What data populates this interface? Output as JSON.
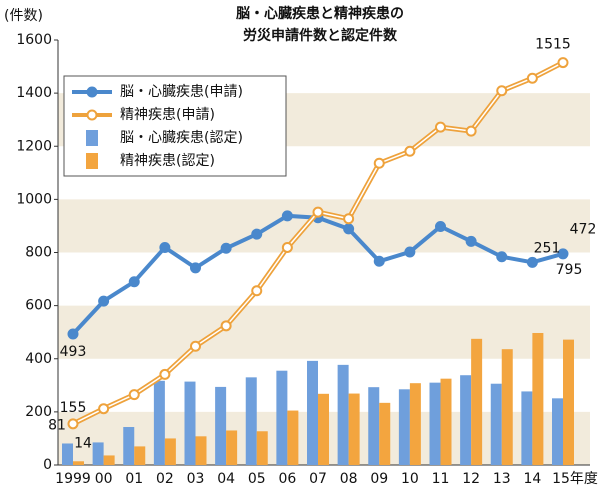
{
  "chart_data": {
    "type": "bar-line",
    "title": [
      "脳・心臓疾患と精神疾患の",
      "労災申請件数と認定件数"
    ],
    "y_label": "(件数)",
    "categories": [
      "1999",
      "00",
      "01",
      "02",
      "03",
      "04",
      "05",
      "06",
      "07",
      "08",
      "09",
      "10",
      "11",
      "12",
      "13",
      "14",
      "15年度"
    ],
    "series": [
      {
        "name": "脳・心臓疾患(申請)",
        "kind": "line",
        "marker": "filled",
        "color": "#4a88cc",
        "values": [
          493,
          617,
          690,
          819,
          742,
          816,
          869,
          938,
          931,
          889,
          767,
          802,
          898,
          842,
          784,
          763,
          795
        ]
      },
      {
        "name": "精神疾患(申請)",
        "kind": "line",
        "marker": "hollow",
        "color": "#eea23c",
        "values": [
          155,
          212,
          265,
          341,
          447,
          524,
          656,
          819,
          952,
          927,
          1136,
          1181,
          1272,
          1257,
          1409,
          1456,
          1515
        ]
      },
      {
        "name": "脳・心臓疾患(認定)",
        "kind": "bar",
        "color": "#6f9fdc",
        "values": [
          81,
          85,
          143,
          317,
          314,
          294,
          330,
          355,
          392,
          377,
          293,
          285,
          310,
          338,
          306,
          277,
          251
        ]
      },
      {
        "name": "精神疾患(認定)",
        "kind": "bar",
        "color": "#f3a53f",
        "values": [
          14,
          36,
          70,
          100,
          108,
          130,
          127,
          205,
          268,
          269,
          234,
          308,
          325,
          475,
          436,
          497,
          472
        ]
      }
    ],
    "data_labels": "ends",
    "ylim": [
      0,
      1600
    ],
    "yticks": [
      0,
      200,
      400,
      600,
      800,
      1000,
      1200,
      1400,
      1600
    ],
    "bands": true,
    "band_color": "#f2ebdc"
  }
}
